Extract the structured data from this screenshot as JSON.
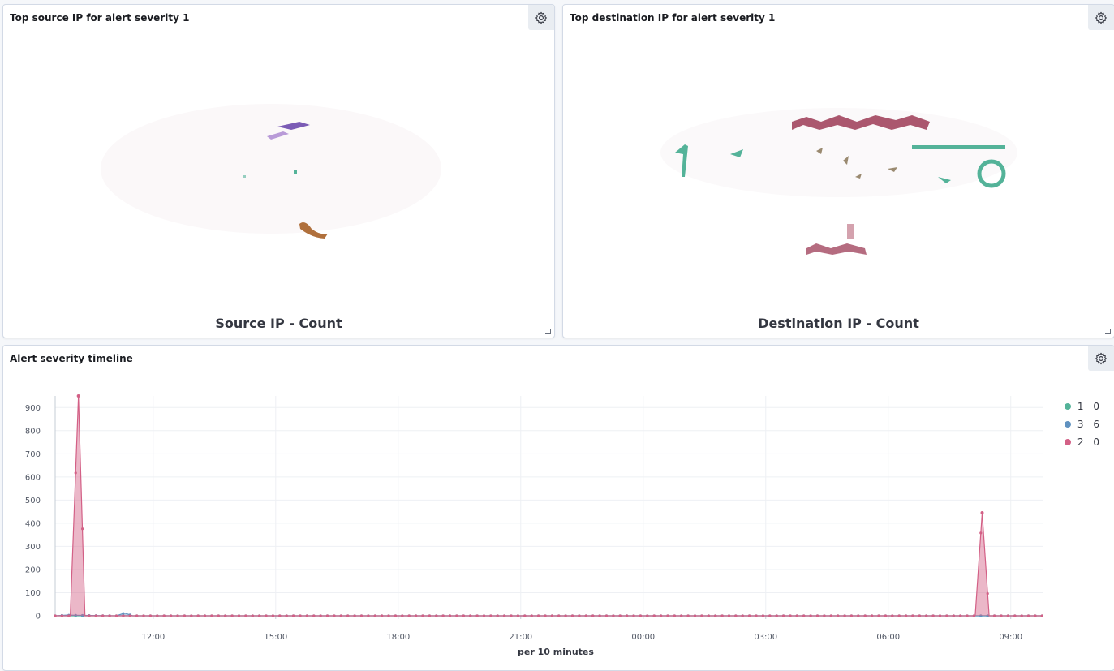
{
  "panels": {
    "source": {
      "title": "Top source IP for alert severity 1",
      "footer": "Source IP - Count"
    },
    "destination": {
      "title": "Top destination IP for alert severity 1",
      "footer": "Destination IP - Count"
    },
    "timeline": {
      "title": "Alert severity timeline"
    }
  },
  "icons": {
    "gear": "gear-icon",
    "resize": "resize-handle-icon"
  },
  "colors": {
    "series_1": "#54b399",
    "series_3": "#6092c0",
    "series_2": "#d36086"
  },
  "legend": [
    {
      "label": "1 0",
      "color": "#54b399"
    },
    {
      "label": "3 6",
      "color": "#6092c0"
    },
    {
      "label": "2 0",
      "color": "#d36086"
    }
  ],
  "chart_data": {
    "type": "area",
    "title": "Alert severity timeline",
    "xlabel": "per 10 minutes",
    "ylabel": "",
    "ylim": [
      0,
      950
    ],
    "y_ticks": [
      0,
      100,
      200,
      300,
      400,
      500,
      600,
      700,
      800,
      900
    ],
    "x_ticks": [
      "12:00",
      "15:00",
      "18:00",
      "21:00",
      "00:00",
      "03:00",
      "06:00",
      "09:00"
    ],
    "x_range_hours": [
      9.6,
      33.8
    ],
    "grid": true,
    "legend_position": "right",
    "series": [
      {
        "name": "1 0",
        "color": "#54b399",
        "points": [
          [
            9.6,
            0
          ],
          [
            33.8,
            0
          ]
        ]
      },
      {
        "name": "3 6",
        "color": "#6092c0",
        "points": [
          [
            9.6,
            0
          ],
          [
            9.9,
            3
          ],
          [
            10.1,
            2
          ],
          [
            11.1,
            0
          ],
          [
            11.3,
            12
          ],
          [
            11.5,
            0
          ],
          [
            33.8,
            0
          ]
        ]
      },
      {
        "name": "2 0",
        "color": "#d36086",
        "points": [
          [
            9.6,
            0
          ],
          [
            9.97,
            0
          ],
          [
            10.17,
            950
          ],
          [
            10.33,
            0
          ],
          [
            32.13,
            0
          ],
          [
            32.3,
            445
          ],
          [
            32.47,
            0
          ],
          [
            33.8,
            0
          ]
        ]
      }
    ]
  }
}
